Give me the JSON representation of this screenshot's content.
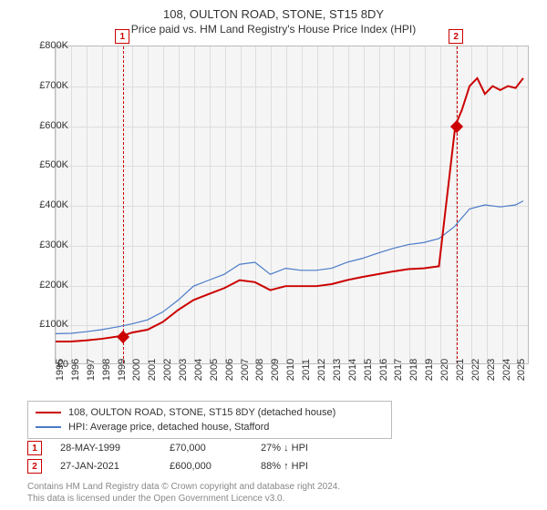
{
  "title": "108, OULTON ROAD, STONE, ST15 8DY",
  "subtitle": "Price paid vs. HM Land Registry's House Price Index (HPI)",
  "chart": {
    "type": "line",
    "background_color": "#f5f5f5",
    "grid_color": "#dddddd",
    "border_color": "#bbbbbb",
    "x_start_year": 1995,
    "x_end_year": 2025.8,
    "xticks": [
      1995,
      1996,
      1997,
      1998,
      1999,
      2000,
      2001,
      2002,
      2003,
      2004,
      2005,
      2006,
      2007,
      2008,
      2009,
      2010,
      2011,
      2012,
      2013,
      2014,
      2015,
      2016,
      2017,
      2018,
      2019,
      2020,
      2021,
      2022,
      2023,
      2024,
      2025
    ],
    "ylim": [
      0,
      800000
    ],
    "yticks": [
      0,
      100000,
      200000,
      300000,
      400000,
      500000,
      600000,
      700000,
      800000
    ],
    "ytick_labels": [
      "£0",
      "£100K",
      "£200K",
      "£300K",
      "£400K",
      "£500K",
      "£600K",
      "£700K",
      "£800K"
    ],
    "series": [
      {
        "name": "property",
        "color": "#cc0000",
        "width": 2,
        "legend": "108, OULTON ROAD, STONE, ST15 8DY (detached house)",
        "points": [
          [
            1995,
            55000
          ],
          [
            1996,
            55000
          ],
          [
            1997,
            58000
          ],
          [
            1998,
            62000
          ],
          [
            1999.4,
            70000
          ],
          [
            2000,
            78000
          ],
          [
            2001,
            85000
          ],
          [
            2002,
            105000
          ],
          [
            2003,
            135000
          ],
          [
            2004,
            160000
          ],
          [
            2005,
            175000
          ],
          [
            2006,
            190000
          ],
          [
            2007,
            210000
          ],
          [
            2008,
            205000
          ],
          [
            2009,
            185000
          ],
          [
            2010,
            195000
          ],
          [
            2011,
            195000
          ],
          [
            2012,
            195000
          ],
          [
            2013,
            200000
          ],
          [
            2014,
            210000
          ],
          [
            2015,
            218000
          ],
          [
            2016,
            225000
          ],
          [
            2017,
            232000
          ],
          [
            2018,
            238000
          ],
          [
            2019,
            240000
          ],
          [
            2020,
            245000
          ],
          [
            2021.07,
            600000
          ],
          [
            2021.5,
            640000
          ],
          [
            2022,
            700000
          ],
          [
            2022.5,
            720000
          ],
          [
            2023,
            680000
          ],
          [
            2023.5,
            700000
          ],
          [
            2024,
            690000
          ],
          [
            2024.5,
            700000
          ],
          [
            2025,
            695000
          ],
          [
            2025.5,
            720000
          ]
        ]
      },
      {
        "name": "hpi",
        "color": "#4a7bc8",
        "width": 1.2,
        "legend": "HPI: Average price, detached house, Stafford",
        "points": [
          [
            1995,
            75000
          ],
          [
            1996,
            76000
          ],
          [
            1997,
            80000
          ],
          [
            1998,
            85000
          ],
          [
            1999,
            92000
          ],
          [
            2000,
            100000
          ],
          [
            2001,
            110000
          ],
          [
            2002,
            130000
          ],
          [
            2003,
            160000
          ],
          [
            2004,
            195000
          ],
          [
            2005,
            210000
          ],
          [
            2006,
            225000
          ],
          [
            2007,
            250000
          ],
          [
            2008,
            255000
          ],
          [
            2009,
            225000
          ],
          [
            2010,
            240000
          ],
          [
            2011,
            235000
          ],
          [
            2012,
            235000
          ],
          [
            2013,
            240000
          ],
          [
            2014,
            255000
          ],
          [
            2015,
            265000
          ],
          [
            2016,
            278000
          ],
          [
            2017,
            290000
          ],
          [
            2018,
            300000
          ],
          [
            2019,
            305000
          ],
          [
            2020,
            315000
          ],
          [
            2021,
            345000
          ],
          [
            2022,
            390000
          ],
          [
            2023,
            400000
          ],
          [
            2024,
            395000
          ],
          [
            2025,
            400000
          ],
          [
            2025.5,
            410000
          ]
        ]
      }
    ],
    "events": [
      {
        "n": "1",
        "year": 1999.4,
        "value": 70000
      },
      {
        "n": "2",
        "year": 2021.07,
        "value": 600000
      }
    ],
    "event_line_color": "#cc0000",
    "event_line_dash": "2,2"
  },
  "legend": {
    "rows": [
      {
        "color": "#cc0000",
        "width": 2,
        "label": "108, OULTON ROAD, STONE, ST15 8DY (detached house)"
      },
      {
        "color": "#4a7bc8",
        "width": 1.2,
        "label": "HPI: Average price, detached house, Stafford"
      }
    ]
  },
  "sales": [
    {
      "n": "1",
      "date": "28-MAY-1999",
      "price": "£70,000",
      "vs": "27% ↓ HPI"
    },
    {
      "n": "2",
      "date": "27-JAN-2021",
      "price": "£600,000",
      "vs": "88% ↑ HPI"
    }
  ],
  "footer": {
    "line1": "Contains HM Land Registry data © Crown copyright and database right 2024.",
    "line2": "This data is licensed under the Open Government Licence v3.0."
  }
}
